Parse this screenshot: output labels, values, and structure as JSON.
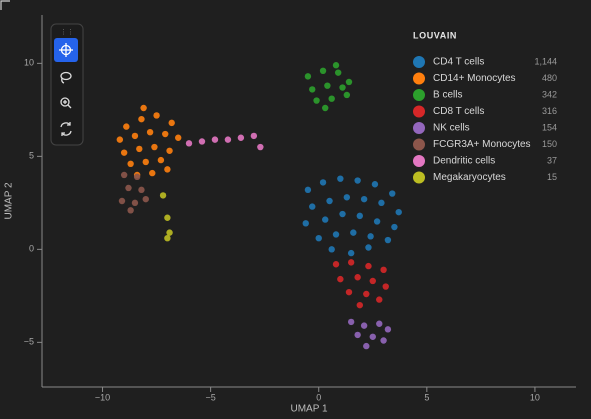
{
  "chart_data": {
    "type": "scatter",
    "xlabel": "UMAP 1",
    "ylabel": "UMAP 2",
    "legend_title": "LOUVAIN",
    "xlim": [
      -12.8,
      11.9
    ],
    "ylim": [
      -7.4,
      12.6
    ],
    "xticks": [
      {
        "value": -10,
        "label": "−10"
      },
      {
        "value": -5,
        "label": "−5"
      },
      0,
      5,
      10
    ],
    "yticks": [
      {
        "value": -5,
        "label": "−5"
      },
      0,
      5,
      10
    ],
    "legend_position": "upper right",
    "series": [
      {
        "name": "CD4 T cells",
        "color": "#1f77b4",
        "count": {
          "value": 1144,
          "label": "1,144"
        },
        "x": [
          -0.5,
          0.2,
          1.0,
          1.8,
          2.6,
          3.4,
          -0.3,
          0.5,
          1.3,
          2.1,
          2.9,
          3.7,
          -0.6,
          0.3,
          1.1,
          1.9,
          2.7,
          3.5,
          0.0,
          0.8,
          1.6,
          2.4,
          3.2,
          0.6,
          1.5,
          2.3
        ],
        "y": [
          3.2,
          3.6,
          3.8,
          3.7,
          3.5,
          3.0,
          2.3,
          2.6,
          2.8,
          2.7,
          2.5,
          2.0,
          1.4,
          1.6,
          1.9,
          1.8,
          1.5,
          1.2,
          0.6,
          0.8,
          0.9,
          0.7,
          0.5,
          0.0,
          -0.2,
          0.1
        ]
      },
      {
        "name": "CD14+ Monocytes",
        "color": "#ff7f0e",
        "count": 480,
        "x": [
          -8.9,
          -8.2,
          -7.5,
          -6.8,
          -9.2,
          -8.5,
          -7.8,
          -7.1,
          -6.5,
          -9.0,
          -8.3,
          -7.6,
          -6.9,
          -8.7,
          -8.0,
          -7.3,
          -8.4,
          -7.7,
          -7.0,
          -8.1
        ],
        "y": [
          6.6,
          7.0,
          7.2,
          6.8,
          5.9,
          6.1,
          6.3,
          6.2,
          6.0,
          5.2,
          5.4,
          5.5,
          5.3,
          4.6,
          4.7,
          4.8,
          4.0,
          4.1,
          4.3,
          7.6
        ]
      },
      {
        "name": "B cells",
        "color": "#2ca02c",
        "count": 342,
        "x": [
          -0.5,
          0.2,
          0.9,
          1.4,
          -0.3,
          0.4,
          1.1,
          -0.1,
          0.6,
          1.3,
          0.3,
          0.8
        ],
        "y": [
          9.3,
          9.6,
          9.5,
          9.0,
          8.6,
          8.8,
          8.7,
          8.0,
          8.1,
          8.3,
          7.6,
          9.9
        ]
      },
      {
        "name": "CD8 T cells",
        "color": "#d62728",
        "count": 316,
        "x": [
          0.8,
          1.5,
          2.3,
          3.0,
          1.0,
          1.8,
          2.5,
          3.1,
          1.4,
          2.2,
          2.8,
          1.9
        ],
        "y": [
          -0.8,
          -0.7,
          -0.9,
          -1.1,
          -1.6,
          -1.5,
          -1.7,
          -2.0,
          -2.3,
          -2.4,
          -2.7,
          -3.0
        ]
      },
      {
        "name": "NK cells",
        "color": "#9467bd",
        "count": 154,
        "x": [
          1.5,
          2.1,
          2.8,
          3.2,
          1.8,
          2.5,
          3.0,
          2.2
        ],
        "y": [
          -3.9,
          -4.1,
          -4.0,
          -4.3,
          -4.6,
          -4.7,
          -4.9,
          -5.2
        ]
      },
      {
        "name": "FCGR3A+ Monocytes",
        "color": "#8c564b",
        "count": 150,
        "x": [
          -9.0,
          -8.4,
          -8.8,
          -8.2,
          -9.1,
          -8.5,
          -8.0,
          -8.7
        ],
        "y": [
          4.0,
          3.9,
          3.3,
          3.2,
          2.6,
          2.5,
          2.7,
          2.1
        ]
      },
      {
        "name": "Dendritic cells",
        "color": "#e377c2",
        "count": 37,
        "x": [
          -6.0,
          -5.4,
          -4.8,
          -4.2,
          -3.6,
          -3.0,
          -2.7
        ],
        "y": [
          5.7,
          5.8,
          5.9,
          5.9,
          6.0,
          6.1,
          5.5
        ]
      },
      {
        "name": "Megakaryocytes",
        "color": "#bcbd22",
        "count": 15,
        "x": [
          -7.2,
          -7.0,
          -6.9,
          -7.0
        ],
        "y": [
          2.9,
          1.7,
          0.9,
          0.6
        ]
      }
    ]
  }
}
